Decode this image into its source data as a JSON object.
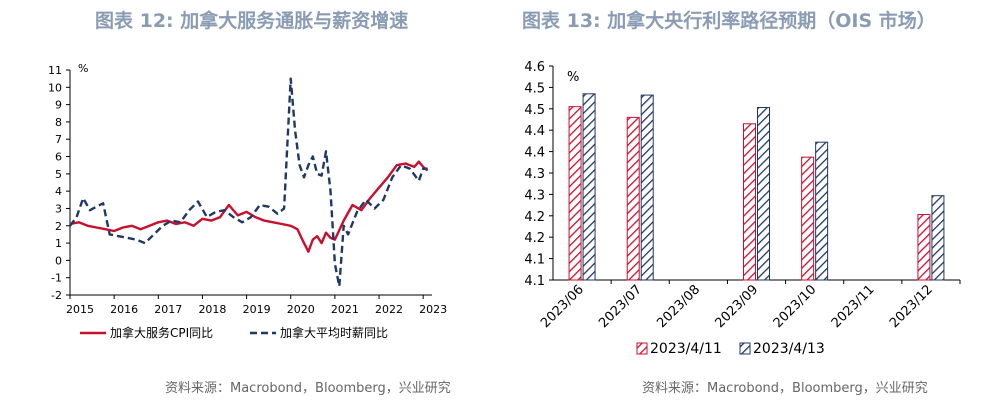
{
  "left_chart": {
    "title": "图表 12: 加拿大服务通胀与薪资增速",
    "source": "资料来源：Macrobond，Bloomberg，兴业研究",
    "unit": "%"
  },
  "right_chart": {
    "title": "图表 13: 加拿大央行利率路径预期（OIS 市场）",
    "source": "资料来源：Macrobond，Bloomberg，兴业研究",
    "unit": "%"
  },
  "colors": {
    "red": "#c8102e",
    "navy": "#1f3864",
    "title": "#8a9bb4"
  },
  "chart_data": [
    {
      "type": "line",
      "ylim": [
        -2,
        11
      ],
      "yticks": [
        "-2",
        "-1",
        "0",
        "1",
        "2",
        "3",
        "4",
        "5",
        "6",
        "7",
        "8",
        "9",
        "10",
        "11"
      ],
      "xlim": [
        2015,
        2023.2
      ],
      "xticks": [
        "2015",
        "2016",
        "2017",
        "2018",
        "2019",
        "2020",
        "2021",
        "2022",
        "2023"
      ],
      "series": [
        {
          "name": "加拿大服务CPI同比",
          "color": "#c8102e",
          "style": "solid",
          "x": [
            2015.0,
            2015.2,
            2015.4,
            2015.6,
            2015.8,
            2016.0,
            2016.2,
            2016.4,
            2016.6,
            2016.8,
            2017.0,
            2017.2,
            2017.4,
            2017.6,
            2017.8,
            2018.0,
            2018.2,
            2018.4,
            2018.6,
            2018.8,
            2019.0,
            2019.2,
            2019.4,
            2019.6,
            2019.8,
            2020.0,
            2020.15,
            2020.3,
            2020.4,
            2020.5,
            2020.6,
            2020.7,
            2020.8,
            2020.9,
            2021.0,
            2021.2,
            2021.4,
            2021.6,
            2021.8,
            2022.0,
            2022.2,
            2022.4,
            2022.6,
            2022.8,
            2022.9,
            2023.0,
            2023.1
          ],
          "y": [
            2.1,
            2.2,
            2.0,
            1.9,
            1.8,
            1.7,
            1.9,
            2.0,
            1.8,
            2.0,
            2.2,
            2.3,
            2.1,
            2.2,
            2.0,
            2.4,
            2.3,
            2.5,
            3.2,
            2.6,
            2.8,
            2.5,
            2.3,
            2.2,
            2.1,
            2.0,
            1.8,
            1.0,
            0.5,
            1.2,
            1.4,
            1.0,
            1.6,
            1.3,
            1.2,
            2.3,
            3.2,
            2.9,
            3.6,
            4.2,
            4.8,
            5.5,
            5.6,
            5.4,
            5.7,
            5.4,
            5.2
          ]
        },
        {
          "name": "加拿大平均时薪同比",
          "color": "#1f3864",
          "style": "dashed",
          "x": [
            2015.0,
            2015.15,
            2015.3,
            2015.45,
            2015.6,
            2015.75,
            2015.9,
            2016.1,
            2016.3,
            2016.5,
            2016.7,
            2016.9,
            2017.1,
            2017.3,
            2017.5,
            2017.7,
            2017.9,
            2018.1,
            2018.3,
            2018.5,
            2018.7,
            2018.9,
            2019.1,
            2019.3,
            2019.5,
            2019.7,
            2019.85,
            2020.0,
            2020.1,
            2020.2,
            2020.3,
            2020.4,
            2020.5,
            2020.6,
            2020.7,
            2020.8,
            2020.9,
            2021.0,
            2021.1,
            2021.2,
            2021.3,
            2021.5,
            2021.7,
            2021.9,
            2022.1,
            2022.3,
            2022.5,
            2022.7,
            2022.9,
            2023.0,
            2023.1
          ],
          "y": [
            2.0,
            2.5,
            3.6,
            2.9,
            3.1,
            3.3,
            1.5,
            1.4,
            1.3,
            1.2,
            1.0,
            1.5,
            2.0,
            2.3,
            2.2,
            2.9,
            3.4,
            2.5,
            2.8,
            2.9,
            2.5,
            2.2,
            2.5,
            3.2,
            3.1,
            2.7,
            3.0,
            10.5,
            7.5,
            5.5,
            4.8,
            5.5,
            6.0,
            5.0,
            4.9,
            6.3,
            4.0,
            -0.2,
            -1.5,
            2.0,
            1.5,
            2.8,
            3.5,
            3.0,
            3.5,
            4.8,
            5.5,
            5.3,
            4.6,
            5.3,
            5.3
          ]
        }
      ]
    },
    {
      "type": "bar",
      "ylim": [
        4.1,
        4.6
      ],
      "yticks": [
        "4.1",
        "4.1",
        "4.2",
        "4.2",
        "4.3",
        "4.3",
        "4.4",
        "4.4",
        "4.5",
        "4.5",
        "4.6"
      ],
      "categories": [
        "2023/06",
        "2023/07",
        "2023/08",
        "2023/09",
        "2023/10",
        "2023/11",
        "2023/12"
      ],
      "series": [
        {
          "name": "2023/4/11",
          "color": "#c8102e",
          "values": [
            4.505,
            4.48,
            null,
            4.465,
            4.387,
            null,
            4.253
          ]
        },
        {
          "name": "2023/4/13",
          "color": "#1f3864",
          "values": [
            4.535,
            4.532,
            null,
            4.503,
            4.422,
            null,
            4.297
          ]
        }
      ]
    }
  ]
}
